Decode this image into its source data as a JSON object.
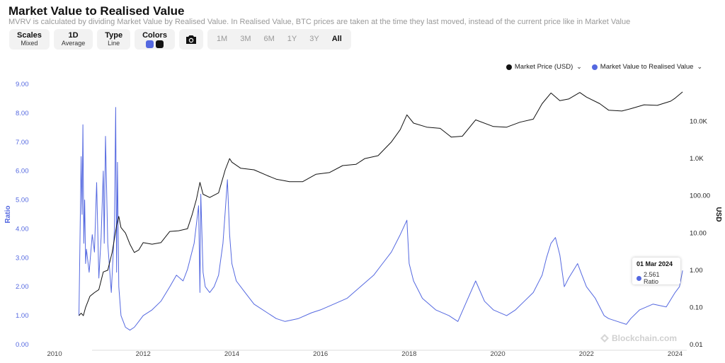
{
  "header": {
    "title": "Market Value to Realised Value",
    "subtitle": "MVRV is calculated by dividing Market Value by Realised Value. In Realised Value, BTC prices are taken at the time they last moved, instead of the current price like in Market Value"
  },
  "controls": {
    "scales": {
      "label": "Scales",
      "value": "Mixed"
    },
    "interval": {
      "label": "1D",
      "value": "Average"
    },
    "type": {
      "label": "Type",
      "value": "Line"
    },
    "colors": {
      "label": "Colors",
      "swatch1": "#5468e0",
      "swatch2": "#111111"
    },
    "camera_icon": "camera-icon",
    "ranges": [
      "1M",
      "3M",
      "6M",
      "1Y",
      "3Y",
      "All"
    ],
    "active_range": "All"
  },
  "legend": {
    "price": "Market Price (USD)",
    "mvrv": "Market Value to Realised Value"
  },
  "tooltip": {
    "date": "01 Mar 2024",
    "value": "2.561 Ratio"
  },
  "watermark": "Blockchain.com",
  "colors": {
    "ratio": "#5468e0",
    "price": "#111111",
    "axis_left": "#5468e0"
  },
  "chart_data": {
    "type": "line",
    "title": "Market Value to Realised Value",
    "x_ticks": [
      "2010",
      "2012",
      "2014",
      "2016",
      "2018",
      "2020",
      "2022",
      "2024"
    ],
    "x_range": [
      2009.6,
      2024.2
    ],
    "y_left": {
      "label": "Ratio",
      "range": [
        0,
        9
      ],
      "ticks": [
        "0.00",
        "1.00",
        "2.00",
        "3.00",
        "4.00",
        "5.00",
        "6.00",
        "7.00",
        "8.00",
        "9.00"
      ]
    },
    "y_right": {
      "label": "USD",
      "scale": "log",
      "range": [
        0.01,
        100000
      ],
      "ticks": [
        "0.01",
        "0.10",
        "1.00",
        "10.00",
        "100.00",
        "1.0K",
        "10.0K"
      ],
      "tick_values": [
        0.01,
        0.1,
        1,
        10,
        100,
        1000,
        10000
      ]
    },
    "series": [
      {
        "name": "Market Value to Realised Value",
        "axis": "left",
        "x": [
          2010.55,
          2010.6,
          2010.62,
          2010.64,
          2010.66,
          2010.68,
          2010.7,
          2010.72,
          2010.78,
          2010.85,
          2010.9,
          2010.95,
          2011.0,
          2011.05,
          2011.1,
          2011.12,
          2011.15,
          2011.2,
          2011.28,
          2011.35,
          2011.38,
          2011.4,
          2011.42,
          2011.45,
          2011.5,
          2011.55,
          2011.6,
          2011.7,
          2011.8,
          2011.9,
          2012.0,
          2012.2,
          2012.4,
          2012.6,
          2012.75,
          2012.9,
          2013.0,
          2013.15,
          2013.25,
          2013.28,
          2013.3,
          2013.35,
          2013.4,
          2013.5,
          2013.6,
          2013.7,
          2013.8,
          2013.85,
          2013.9,
          2013.95,
          2014.0,
          2014.1,
          2014.3,
          2014.5,
          2014.8,
          2015.0,
          2015.2,
          2015.5,
          2015.8,
          2016.0,
          2016.3,
          2016.6,
          2016.9,
          2017.2,
          2017.4,
          2017.6,
          2017.8,
          2017.95,
          2018.0,
          2018.1,
          2018.3,
          2018.6,
          2018.9,
          2019.1,
          2019.3,
          2019.5,
          2019.7,
          2019.9,
          2020.2,
          2020.4,
          2020.6,
          2020.8,
          2021.0,
          2021.1,
          2021.2,
          2021.3,
          2021.4,
          2021.5,
          2021.6,
          2021.8,
          2021.9,
          2022.0,
          2022.2,
          2022.4,
          2022.5,
          2022.7,
          2022.9,
          2023.0,
          2023.2,
          2023.5,
          2023.8,
          2024.0,
          2024.1,
          2024.17
        ],
        "y": [
          1.0,
          6.5,
          4.5,
          7.6,
          3.5,
          5.0,
          2.8,
          3.3,
          2.5,
          3.8,
          3.2,
          5.6,
          2.3,
          3.7,
          6.0,
          3.5,
          7.2,
          3.5,
          1.8,
          4.0,
          8.2,
          2.5,
          6.3,
          2.0,
          1.0,
          0.8,
          0.6,
          0.5,
          0.6,
          0.8,
          1.0,
          1.2,
          1.5,
          2.0,
          2.4,
          2.2,
          2.6,
          3.5,
          4.8,
          1.8,
          5.2,
          2.5,
          2.0,
          1.8,
          2.0,
          2.4,
          3.5,
          4.6,
          5.7,
          3.8,
          2.8,
          2.2,
          1.8,
          1.4,
          1.1,
          0.9,
          0.8,
          0.9,
          1.1,
          1.2,
          1.4,
          1.6,
          2.0,
          2.4,
          2.8,
          3.2,
          3.8,
          4.3,
          2.8,
          2.2,
          1.6,
          1.2,
          1.0,
          0.8,
          1.5,
          2.2,
          1.5,
          1.2,
          1.0,
          1.2,
          1.5,
          1.8,
          2.4,
          3.0,
          3.5,
          3.7,
          3.1,
          2.0,
          2.3,
          2.8,
          2.4,
          2.0,
          1.6,
          1.0,
          0.9,
          0.8,
          0.7,
          0.9,
          1.2,
          1.4,
          1.3,
          1.8,
          2.0,
          2.56
        ]
      },
      {
        "name": "Market Price (USD)",
        "axis": "right",
        "x": [
          2010.55,
          2010.6,
          2010.65,
          2010.7,
          2010.8,
          2010.9,
          2011.0,
          2011.1,
          2011.2,
          2011.3,
          2011.4,
          2011.45,
          2011.5,
          2011.6,
          2011.7,
          2011.8,
          2011.9,
          2012.0,
          2012.2,
          2012.4,
          2012.6,
          2012.8,
          2013.0,
          2013.1,
          2013.2,
          2013.28,
          2013.35,
          2013.5,
          2013.7,
          2013.85,
          2013.95,
          2014.0,
          2014.2,
          2014.5,
          2014.8,
          2015.0,
          2015.3,
          2015.6,
          2015.9,
          2016.2,
          2016.5,
          2016.8,
          2017.0,
          2017.3,
          2017.6,
          2017.8,
          2017.95,
          2018.1,
          2018.4,
          2018.7,
          2018.95,
          2019.2,
          2019.5,
          2019.9,
          2020.2,
          2020.5,
          2020.8,
          2021.0,
          2021.2,
          2021.4,
          2021.6,
          2021.85,
          2022.0,
          2022.3,
          2022.5,
          2022.8,
          2023.0,
          2023.3,
          2023.6,
          2023.9,
          2024.0,
          2024.17
        ],
        "y": [
          0.06,
          0.07,
          0.06,
          0.1,
          0.2,
          0.25,
          0.3,
          0.9,
          1.0,
          3.0,
          16.0,
          28.0,
          14.0,
          10.0,
          5.0,
          3.0,
          3.5,
          5.5,
          5.0,
          5.5,
          11.0,
          11.5,
          13.0,
          30.0,
          80.0,
          230.0,
          110.0,
          90.0,
          120.0,
          500.0,
          1000.0,
          800.0,
          550.0,
          500.0,
          350.0,
          280.0,
          240.0,
          240.0,
          380.0,
          420.0,
          650.0,
          700.0,
          1000.0,
          1200.0,
          2800.0,
          6000.0,
          15000.0,
          9000.0,
          7000.0,
          6500.0,
          3800.0,
          4000.0,
          11000.0,
          7300.0,
          7000.0,
          9500.0,
          11500.0,
          30000.0,
          58000.0,
          36000.0,
          40000.0,
          60000.0,
          45000.0,
          30000.0,
          20000.0,
          19000.0,
          22000.0,
          28000.0,
          27000.0,
          35000.0,
          42000.0,
          62000.0
        ]
      }
    ]
  }
}
